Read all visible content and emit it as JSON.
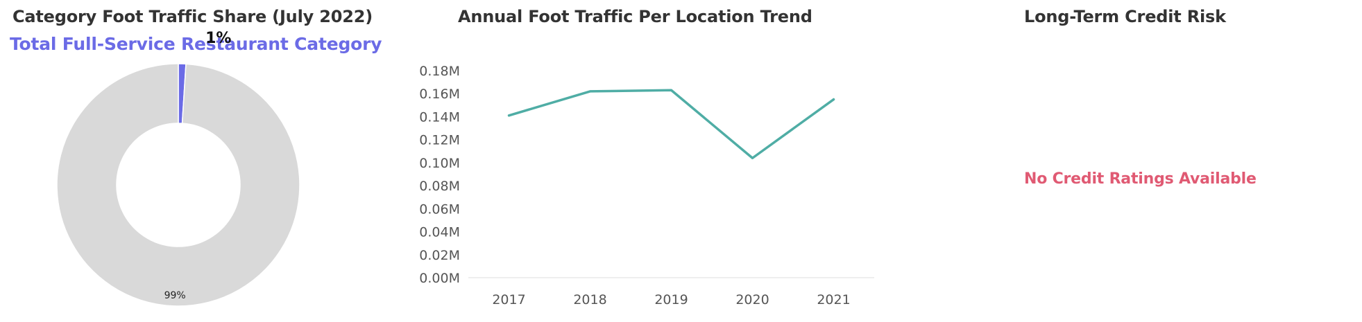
{
  "panels": {
    "share": {
      "title": "Category Foot Traffic Share (July 2022)",
      "subtitle": "Total Full-Service Restaurant Category"
    },
    "trend": {
      "title": "Annual Foot Traffic Per Location Trend"
    },
    "credit": {
      "title": "Long-Term Credit Risk",
      "message": "No Credit Ratings Available"
    }
  },
  "colors": {
    "share_slice": "#6b6be6",
    "rest_slice": "#d9d9d9",
    "line": "#4fada5",
    "credit_message": "#e05a73"
  },
  "chart_data": [
    {
      "type": "pie",
      "donut": true,
      "title": "Category Foot Traffic Share (July 2022)",
      "subtitle": "Total Full-Service Restaurant Category",
      "slices": [
        {
          "value": 1,
          "label": "1%",
          "color": "#6b6be6"
        },
        {
          "value": 99,
          "label": "99%",
          "color": "#d9d9d9"
        }
      ]
    },
    {
      "type": "line",
      "title": "Annual Foot Traffic Per Location Trend",
      "x": [
        "2017",
        "2018",
        "2019",
        "2020",
        "2021"
      ],
      "series": [
        {
          "values": [
            0.141,
            0.162,
            0.163,
            0.104,
            0.155
          ],
          "color": "#4fada5"
        }
      ],
      "ylim": [
        0,
        0.18
      ],
      "yticks": [
        "0.00M",
        "0.02M",
        "0.04M",
        "0.06M",
        "0.08M",
        "0.10M",
        "0.12M",
        "0.14M",
        "0.16M",
        "0.18M"
      ],
      "ytick_values": [
        0,
        0.02,
        0.04,
        0.06,
        0.08,
        0.1,
        0.12,
        0.14,
        0.16,
        0.18
      ],
      "grid": false
    }
  ]
}
